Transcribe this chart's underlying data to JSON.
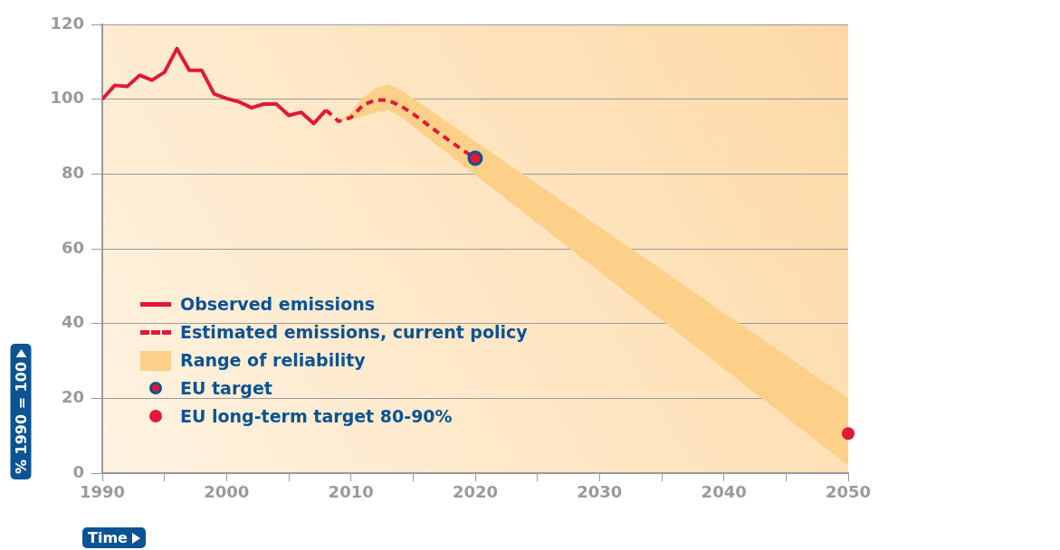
{
  "chart_data": {
    "type": "line",
    "xlabel": "Time",
    "ylabel": "% 1990 = 100",
    "xlim": [
      1990,
      2050
    ],
    "xticks": [
      1990,
      {
        "value": 1995,
        "label": null
      },
      2000,
      {
        "value": 2005,
        "label": null
      },
      2010,
      {
        "value": 2015,
        "label": null
      },
      2020,
      {
        "value": 2025,
        "label": null
      },
      2030,
      {
        "value": 2035,
        "label": null
      },
      2040,
      {
        "value": 2045,
        "label": null
      },
      2050
    ],
    "ylim": [
      0,
      120
    ],
    "yticks": [
      0,
      20,
      40,
      60,
      80,
      100,
      120
    ],
    "grid": "y",
    "legend": "left",
    "series": [
      {
        "name": "Observed emissions",
        "color": "#e31837",
        "line_style": "solid",
        "marker": "none",
        "x": [
          1990,
          1991,
          1992,
          1993,
          1994,
          1995,
          1996,
          1997,
          1998,
          1999,
          2000,
          2001,
          2002,
          2003,
          2004,
          2005,
          2006,
          2007,
          2008
        ],
        "values": [
          100,
          103.7,
          103.4,
          106.4,
          105.1,
          107.2,
          113.5,
          107.7,
          107.7,
          101.4,
          100.2,
          99.3,
          97.7,
          98.7,
          98.7,
          95.7,
          96.5,
          93.5,
          97.1
        ]
      },
      {
        "name": "Estimated emissions, current policy",
        "color": "#e31837",
        "line_style": "dashed",
        "marker": "none",
        "x": [
          2008,
          2009,
          2010,
          2011,
          2012,
          2013,
          2014,
          2015,
          2016,
          2017,
          2018,
          2019,
          2020
        ],
        "values": [
          97.1,
          94.1,
          95.1,
          98.5,
          99.8,
          99.7,
          98.2,
          96.1,
          93.6,
          91.1,
          88.7,
          86.4,
          84.2
        ]
      },
      {
        "name": "Range of reliability",
        "type": "area",
        "color": "#fdd08a",
        "marker": "none",
        "x": [
          2009,
          2010,
          2011,
          2012,
          2013,
          2014,
          2050
        ],
        "values": [
          null,
          null,
          null,
          null,
          null,
          null,
          null
        ],
        "lower": [
          94,
          94.5,
          95.5,
          96.5,
          97,
          95.3,
          2
        ],
        "upper": [
          94,
          96.5,
          100.5,
          103,
          104,
          102.5,
          20
        ]
      },
      {
        "name": "EU target",
        "type": "scatter",
        "color": "#0b5394",
        "marker": "circle",
        "x": [
          2020
        ],
        "values": [
          84.2
        ]
      },
      {
        "name": "EU long-term target 80-90%",
        "type": "scatter",
        "color": "#e31837",
        "marker": "circle",
        "x": [
          2050
        ],
        "values": [
          10.6
        ]
      }
    ]
  }
}
